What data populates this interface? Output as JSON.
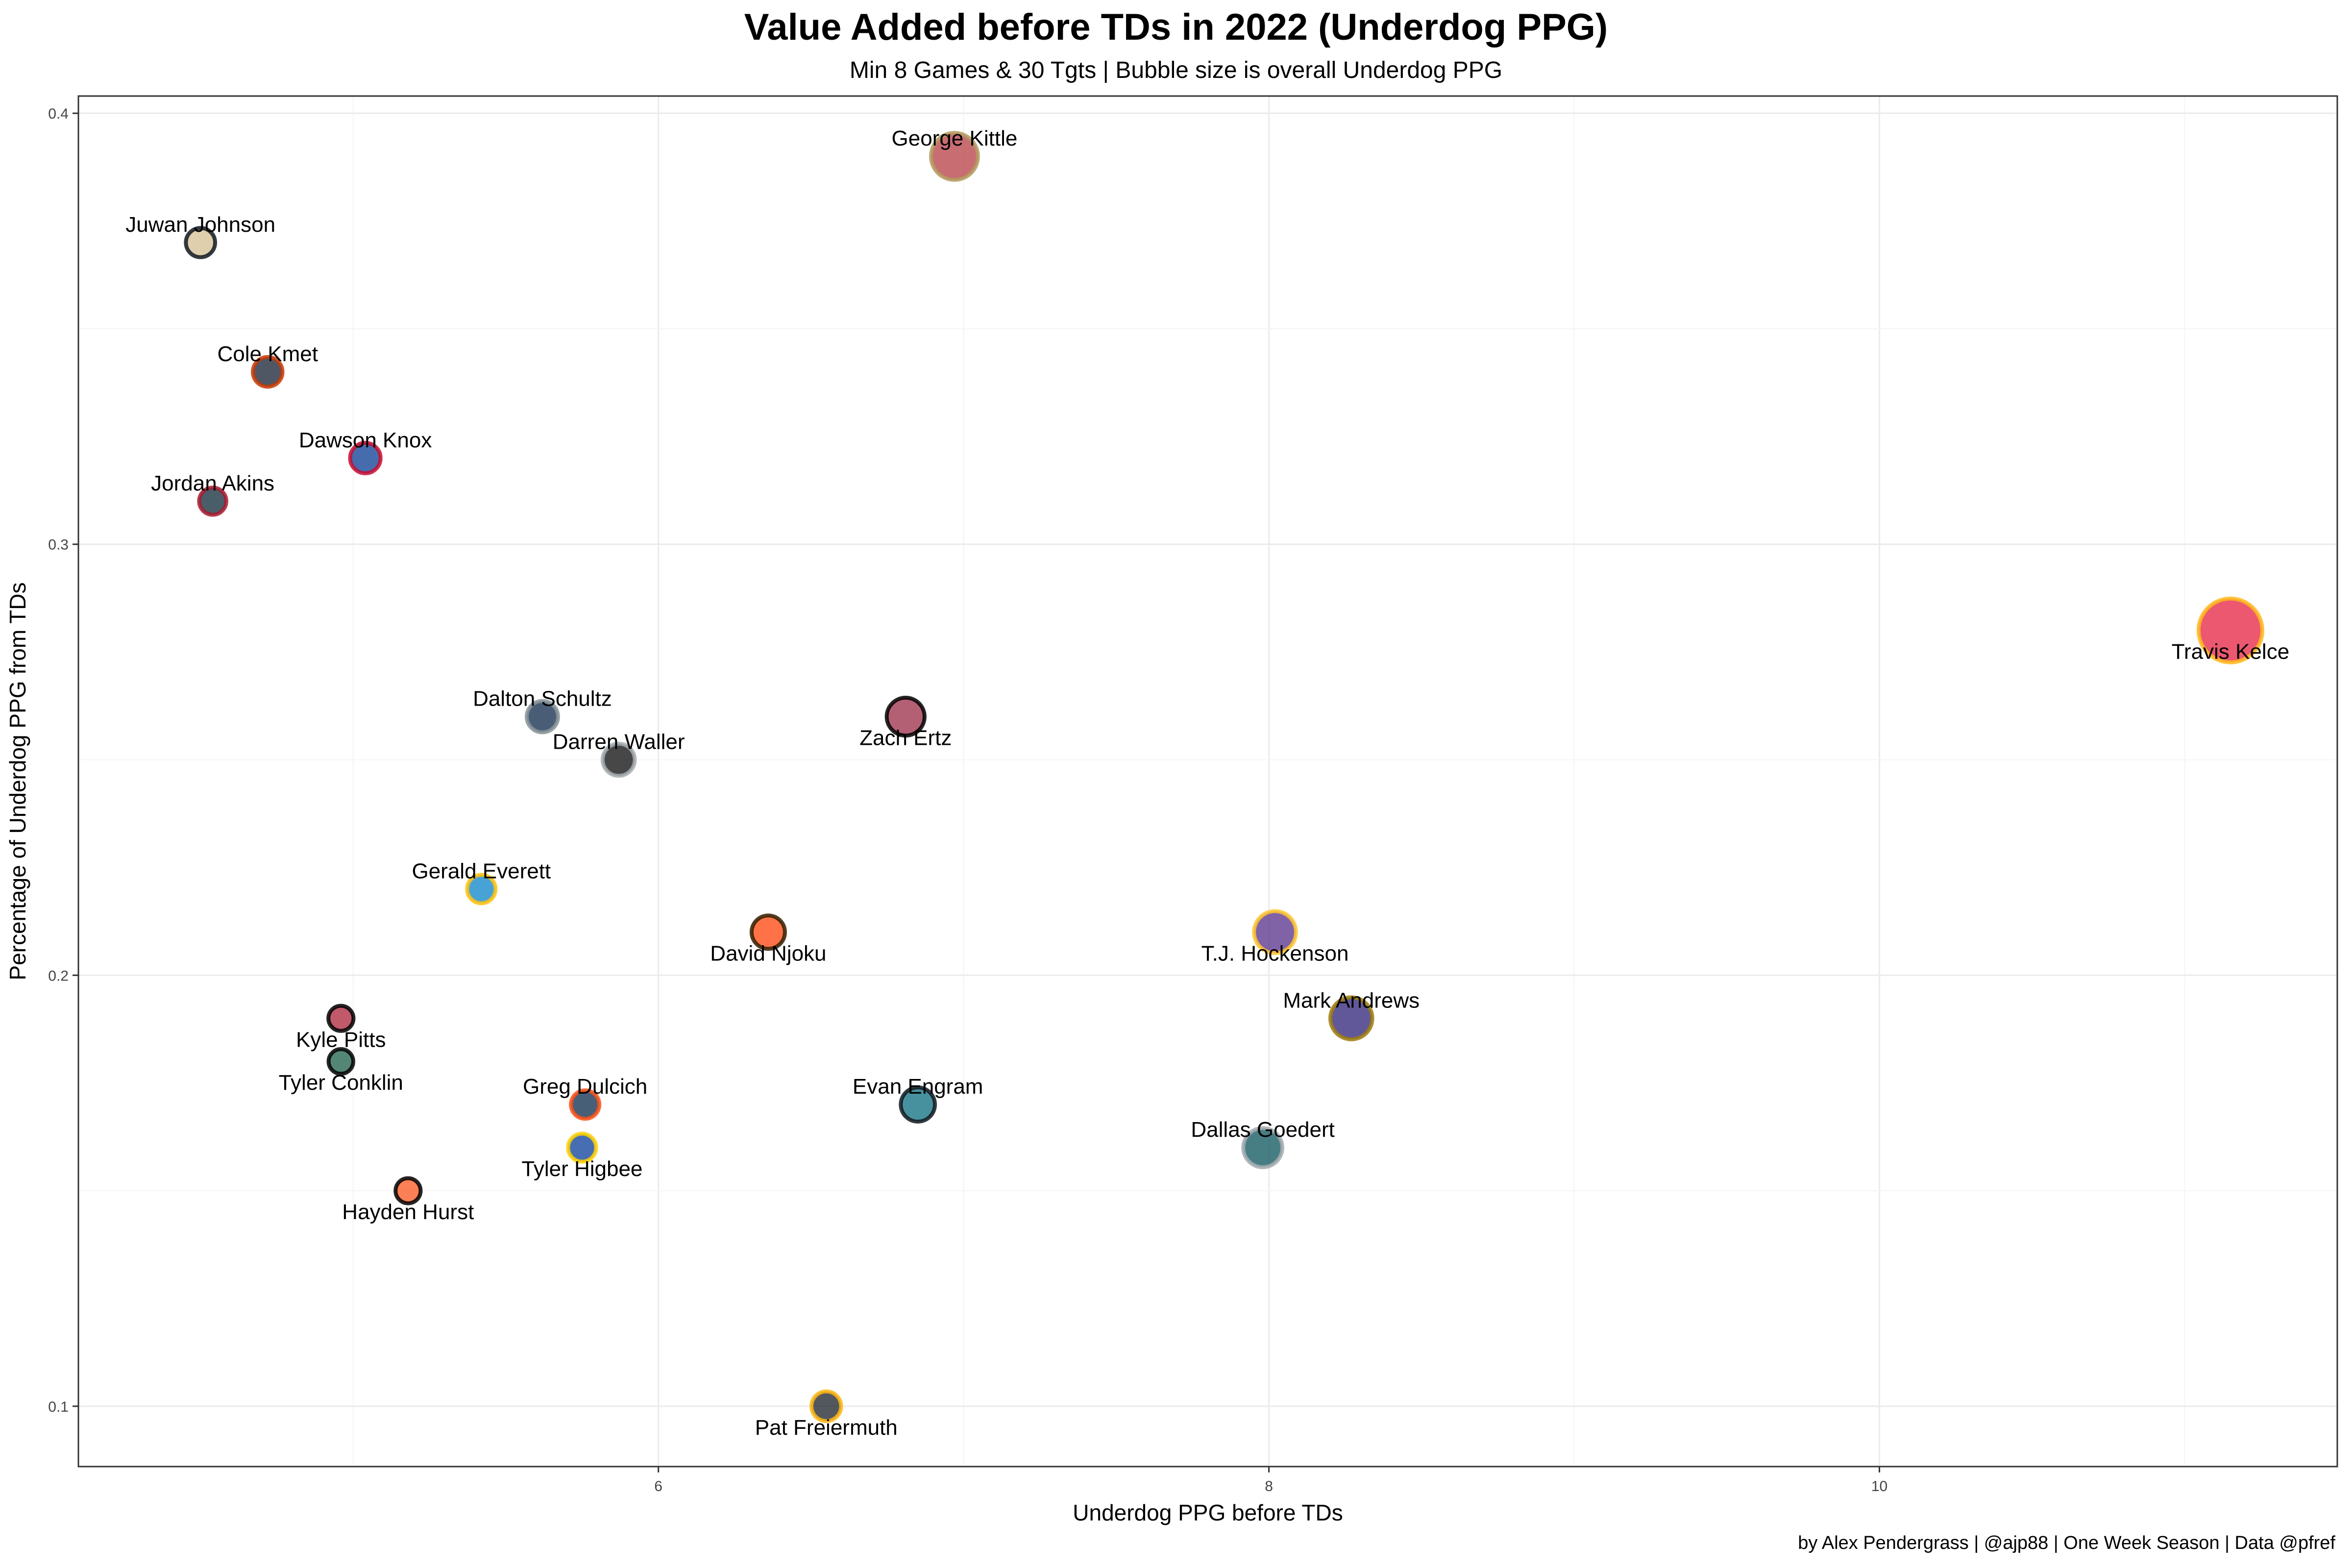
{
  "chart_data": {
    "type": "scatter",
    "title": "Value Added before TDs in 2022 (Underdog PPG)",
    "subtitle": "Min 8 Games & 30 Tgts | Bubble size is overall Underdog PPG",
    "xlabel": "Underdog PPG before TDs",
    "ylabel": "Percentage of Underdog PPG from TDs",
    "caption": "by Alex Pendergrass | @ajp88 | One Week Season | Data @pfref",
    "xlim": [
      4.1,
      11.5
    ],
    "ylim": [
      0.086,
      0.404
    ],
    "x_ticks": [
      6,
      8,
      10
    ],
    "y_ticks": [
      0.1,
      0.2,
      0.3,
      0.4
    ],
    "x_tick_labels": [
      "6",
      "8",
      "10"
    ],
    "y_tick_labels": [
      "0.1",
      "0.2",
      "0.3",
      "0.4"
    ],
    "grid": true,
    "points": [
      {
        "label": "George Kittle",
        "x": 6.97,
        "y": 0.39,
        "size": 11.4,
        "fill": "#B3353B",
        "stroke": "#B3995D",
        "label_pos": "above"
      },
      {
        "label": "Juwan Johnson",
        "x": 4.5,
        "y": 0.37,
        "size": 7.1,
        "fill": "#D3BC8D",
        "stroke": "#101820",
        "label_pos": "above"
      },
      {
        "label": "Cole Kmet",
        "x": 4.72,
        "y": 0.34,
        "size": 7.2,
        "fill": "#0B162A",
        "stroke": "#C83803",
        "label_pos": "above"
      },
      {
        "label": "Dawson Knox",
        "x": 5.04,
        "y": 0.32,
        "size": 7.4,
        "fill": "#00338D",
        "stroke": "#C60C30",
        "label_pos": "above"
      },
      {
        "label": "Jordan Akins",
        "x": 4.54,
        "y": 0.31,
        "size": 6.6,
        "fill": "#03202F",
        "stroke": "#A71930",
        "label_pos": "above"
      },
      {
        "label": "Travis Kelce",
        "x": 11.15,
        "y": 0.28,
        "size": 15.5,
        "fill": "#E31837",
        "stroke": "#FFB81C",
        "label_pos": "below"
      },
      {
        "label": "Dalton Schultz",
        "x": 5.62,
        "y": 0.26,
        "size": 7.6,
        "fill": "#041E42",
        "stroke": "#869397",
        "label_pos": "above"
      },
      {
        "label": "Zach Ertz",
        "x": 6.81,
        "y": 0.26,
        "size": 9.2,
        "fill": "#97233F",
        "stroke": "#000000",
        "label_pos": "below"
      },
      {
        "label": "Darren Waller",
        "x": 5.87,
        "y": 0.25,
        "size": 7.8,
        "fill": "#000000",
        "stroke": "#A5ACAF",
        "label_pos": "above"
      },
      {
        "label": "Gerald Everett",
        "x": 5.42,
        "y": 0.22,
        "size": 6.9,
        "fill": "#0080C6",
        "stroke": "#FFC20E",
        "label_pos": "above"
      },
      {
        "label": "David Njoku",
        "x": 6.36,
        "y": 0.21,
        "size": 8.1,
        "fill": "#FF3C00",
        "stroke": "#311D00",
        "label_pos": "below"
      },
      {
        "label": "T.J. Hockenson",
        "x": 8.02,
        "y": 0.21,
        "size": 10.2,
        "fill": "#4F2683",
        "stroke": "#FFC62F",
        "label_pos": "below"
      },
      {
        "label": "Mark Andrews",
        "x": 8.27,
        "y": 0.19,
        "size": 10.2,
        "fill": "#241773",
        "stroke": "#9E7C0C",
        "label_pos": "above"
      },
      {
        "label": "Kyle Pitts",
        "x": 4.96,
        "y": 0.19,
        "size": 6.1,
        "fill": "#A71930",
        "stroke": "#000000",
        "label_pos": "below"
      },
      {
        "label": "Tyler Conklin",
        "x": 4.96,
        "y": 0.18,
        "size": 6.0,
        "fill": "#125740",
        "stroke": "#000000",
        "label_pos": "below"
      },
      {
        "label": "Greg Dulcich",
        "x": 5.76,
        "y": 0.17,
        "size": 6.9,
        "fill": "#002244",
        "stroke": "#FB4F14",
        "label_pos": "above"
      },
      {
        "label": "Evan Engram",
        "x": 6.85,
        "y": 0.17,
        "size": 8.3,
        "fill": "#006778",
        "stroke": "#101820",
        "label_pos": "above"
      },
      {
        "label": "Dallas Goedert",
        "x": 7.98,
        "y": 0.16,
        "size": 9.5,
        "fill": "#004C54",
        "stroke": "#A5ACAF",
        "label_pos": "above"
      },
      {
        "label": "Tyler Higbee",
        "x": 5.75,
        "y": 0.16,
        "size": 6.8,
        "fill": "#003594",
        "stroke": "#FFD100",
        "label_pos": "below"
      },
      {
        "label": "Hayden Hurst",
        "x": 5.18,
        "y": 0.15,
        "size": 6.1,
        "fill": "#FB4F14",
        "stroke": "#000000",
        "label_pos": "below"
      },
      {
        "label": "Pat Freiermuth",
        "x": 6.55,
        "y": 0.1,
        "size": 7.2,
        "fill": "#101820",
        "stroke": "#FFB612",
        "label_pos": "below"
      }
    ]
  }
}
